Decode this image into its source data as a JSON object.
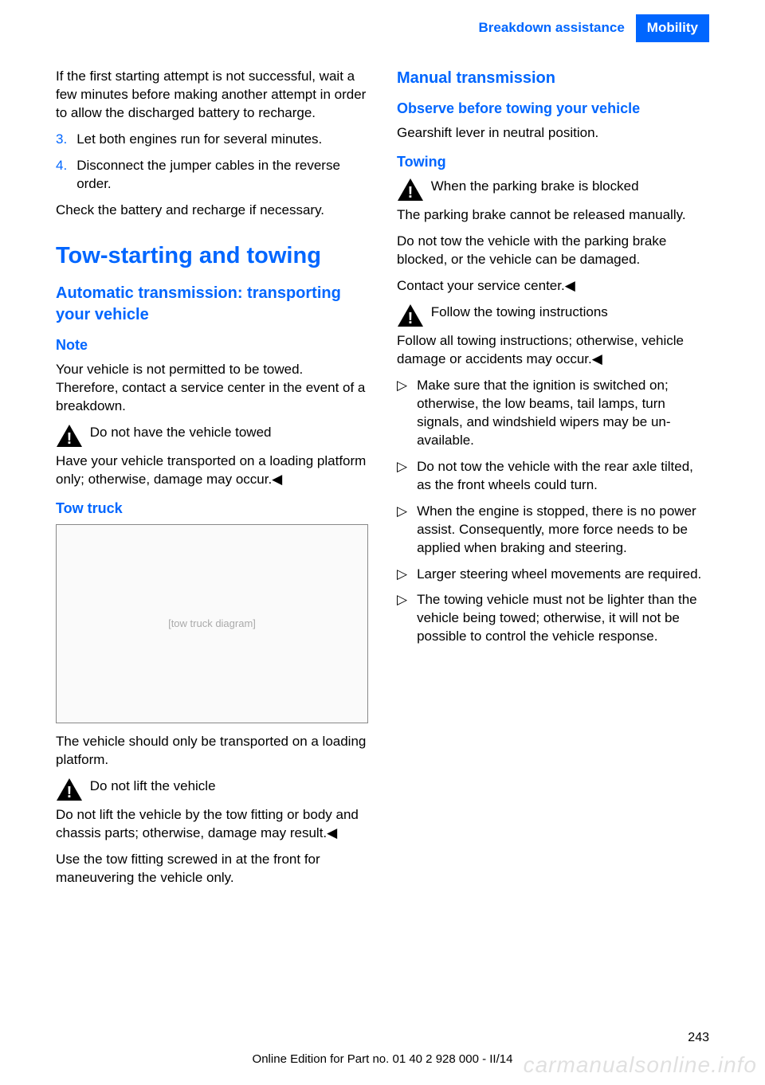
{
  "header": {
    "section": "Breakdown assistance",
    "chapter": "Mobility"
  },
  "left": {
    "intro": "If the first starting attempt is not success­ful, wait a few minutes before making an­other attempt in order to allow the dis­charged battery to recharge.",
    "step3_num": "3.",
    "step3": "Let both engines run for several minutes.",
    "step4_num": "4.",
    "step4": "Disconnect the jumper cables in the re­verse order.",
    "check": "Check the battery and recharge if necessary.",
    "h1": "Tow-starting and towing",
    "h2_auto": "Automatic transmission: transporting your vehicle",
    "h3_note": "Note",
    "note_p": "Your vehicle is not permitted to be towed. Therefore, contact a service center in the event of a breakdown.",
    "warn1_title": "Do not have the vehicle towed",
    "warn1_body": "Have your vehicle transported on a load­ing platform only; otherwise, damage may oc­cur.◀",
    "h3_towtruck": "Tow truck",
    "image_alt": "[tow truck diagram]",
    "tow_p": "The vehicle should only be transported on a loading platform.",
    "warn2_title": "Do not lift the vehicle",
    "warn2_body": "Do not lift the vehicle by the tow fitting or body and chassis parts; otherwise, damage may result.◀",
    "use_p": "Use the tow fitting screwed in at the front for maneuvering the vehicle only."
  },
  "right": {
    "h2_manual": "Manual transmission",
    "h3_observe": "Observe before towing your vehicle",
    "observe_p": "Gearshift lever in neutral position.",
    "h3_towing": "Towing",
    "warn3_title": "When the parking brake is blocked",
    "warn3_body": "The parking brake cannot be released manually.",
    "tow_p1": "Do not tow the vehicle with the parking brake blocked, or the vehicle can be damaged.",
    "tow_p2": "Contact your service center.◀",
    "warn4_title": "Follow the towing instructions",
    "warn4_body": "Follow all towing instructions; otherwise, vehicle damage or accidents may occur.◀",
    "bullets": [
      "Make sure that the ignition is switched on; otherwise, the low beams, tail lamps, turn signals, and windshield wipers may be un­available.",
      "Do not tow the vehicle with the rear axle tilted, as the front wheels could turn.",
      "When the engine is stopped, there is no power assist. Consequently, more force needs to be applied when braking and steering.",
      "Larger steering wheel movements are re­quired.",
      "The towing vehicle must not be lighter than the vehicle being towed; otherwise, it will not be possible to control the vehicle response."
    ],
    "bullet_marker": "▷"
  },
  "footer": {
    "page": "243",
    "line": "Online Edition for Part no. 01 40 2 928 000 - II/14",
    "watermark": "carmanualsonline.info"
  }
}
